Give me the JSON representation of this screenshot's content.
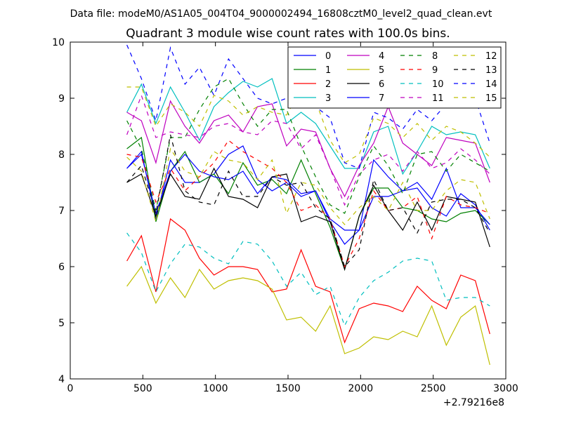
{
  "chart_data": {
    "type": "line",
    "suptitle": "Data file: modeM0/AS1A05_004T04_9000002494_16808cztM0_level2_quad_clean.evt",
    "title": "Quadrant 3 module wise count rates with 100.0s bins.",
    "xlabel": "",
    "ylabel": "",
    "xlim": [
      0,
      3000
    ],
    "ylim": [
      4,
      10
    ],
    "x_offset_label": "+2.79216e8",
    "x_ticks": [
      0,
      500,
      1000,
      1500,
      2000,
      2500,
      3000
    ],
    "x_tick_labels": [
      "0",
      "500",
      "1000",
      "1500",
      "2000",
      "2500",
      "3000"
    ],
    "y_ticks": [
      4,
      5,
      6,
      7,
      8,
      9,
      10
    ],
    "y_tick_labels": [
      "4",
      "5",
      "6",
      "7",
      "8",
      "9",
      "10"
    ],
    "legend_position": "top-right",
    "x": [
      390,
      490,
      590,
      690,
      790,
      890,
      990,
      1090,
      1190,
      1290,
      1390,
      1490,
      1590,
      1690,
      1790,
      1890,
      1990,
      2090,
      2190,
      2290,
      2390,
      2490,
      2590,
      2690,
      2790,
      2890
    ],
    "series": [
      {
        "name": "0",
        "color": "#0000ff",
        "dash": "solid",
        "values": [
          7.75,
          8.05,
          6.85,
          7.9,
          7.5,
          7.5,
          7.65,
          8.0,
          8.15,
          7.55,
          7.35,
          7.5,
          7.25,
          7.35,
          6.8,
          6.4,
          6.65,
          7.9,
          7.6,
          7.35,
          7.4,
          7.05,
          6.9,
          7.3,
          7.1,
          6.65
        ]
      },
      {
        "name": "1",
        "color": "#008000",
        "dash": "solid",
        "values": [
          8.1,
          8.3,
          6.8,
          7.7,
          8.05,
          7.5,
          7.65,
          7.3,
          7.85,
          7.45,
          7.55,
          7.3,
          7.9,
          7.3,
          6.7,
          5.95,
          6.9,
          7.4,
          7.4,
          7.05,
          7.0,
          6.85,
          6.8,
          6.95,
          7.0,
          6.75
        ]
      },
      {
        "name": "2",
        "color": "#ff0000",
        "dash": "solid",
        "values": [
          6.1,
          6.55,
          5.55,
          6.85,
          6.65,
          6.15,
          5.85,
          6.0,
          6.0,
          5.95,
          5.55,
          5.6,
          6.3,
          5.65,
          5.55,
          4.65,
          5.25,
          5.35,
          5.3,
          5.2,
          5.65,
          5.4,
          5.25,
          5.85,
          5.75,
          4.8
        ]
      },
      {
        "name": "3",
        "color": "#00bfbf",
        "dash": "solid",
        "values": [
          8.75,
          9.25,
          8.55,
          9.2,
          8.75,
          8.25,
          8.85,
          9.1,
          9.3,
          9.2,
          9.35,
          8.55,
          8.75,
          8.55,
          8.15,
          7.75,
          7.75,
          8.4,
          8.5,
          7.65,
          8.05,
          8.5,
          8.35,
          8.4,
          8.35,
          7.75
        ]
      },
      {
        "name": "4",
        "color": "#bf00bf",
        "dash": "solid",
        "values": [
          8.75,
          8.6,
          7.85,
          8.95,
          8.5,
          8.2,
          8.6,
          8.7,
          8.4,
          8.85,
          8.9,
          8.15,
          8.45,
          8.4,
          7.75,
          7.25,
          7.8,
          8.2,
          8.85,
          8.2,
          8.0,
          7.8,
          8.3,
          8.25,
          8.2,
          7.5
        ]
      },
      {
        "name": "5",
        "color": "#bfbf00",
        "dash": "solid",
        "values": [
          5.65,
          6.0,
          5.35,
          5.8,
          5.45,
          5.95,
          5.6,
          5.75,
          5.8,
          5.75,
          5.6,
          5.05,
          5.1,
          4.85,
          5.3,
          4.45,
          4.55,
          4.75,
          4.7,
          4.85,
          4.75,
          5.3,
          4.6,
          5.1,
          5.3,
          4.25
        ]
      },
      {
        "name": "6",
        "color": "#000000",
        "dash": "solid",
        "values": [
          7.5,
          7.65,
          6.9,
          7.65,
          7.25,
          7.2,
          7.75,
          7.25,
          7.2,
          7.05,
          7.6,
          7.65,
          6.8,
          6.9,
          6.8,
          5.95,
          6.9,
          7.45,
          7.0,
          6.65,
          7.15,
          6.65,
          7.25,
          7.2,
          7.15,
          6.35
        ]
      },
      {
        "name": "7",
        "color": "#0000ff",
        "dash": "solid",
        "values": [
          7.75,
          8.0,
          6.95,
          7.7,
          8.0,
          7.7,
          7.6,
          7.55,
          7.7,
          7.3,
          7.6,
          7.55,
          7.3,
          7.35,
          6.85,
          6.65,
          6.65,
          7.25,
          7.25,
          7.35,
          7.5,
          7.2,
          7.75,
          7.05,
          7.05,
          6.75
        ]
      },
      {
        "name": "8",
        "color": "#008000",
        "dash": "dashed",
        "values": [
          8.6,
          8.1,
          7.0,
          8.3,
          8.3,
          8.8,
          9.2,
          9.35,
          8.9,
          8.5,
          8.8,
          8.8,
          8.15,
          7.6,
          7.1,
          6.95,
          7.6,
          8.15,
          7.8,
          7.3,
          8.0,
          8.05,
          7.7,
          8.0,
          7.85,
          7.7
        ]
      },
      {
        "name": "9",
        "color": "#ff0000",
        "dash": "dashed",
        "values": [
          8.0,
          7.95,
          7.15,
          7.75,
          7.35,
          7.6,
          7.85,
          8.25,
          8.05,
          7.9,
          7.75,
          7.5,
          7.0,
          7.1,
          6.85,
          6.0,
          6.5,
          7.35,
          7.0,
          7.05,
          7.25,
          6.5,
          7.25,
          7.1,
          7.05,
          6.95
        ]
      },
      {
        "name": "10",
        "color": "#00bfbf",
        "dash": "dashed",
        "values": [
          6.6,
          6.25,
          5.55,
          6.05,
          6.4,
          6.35,
          6.15,
          6.05,
          6.45,
          6.4,
          6.1,
          5.65,
          5.9,
          5.5,
          5.65,
          4.95,
          5.45,
          5.75,
          5.9,
          6.1,
          6.15,
          6.1,
          5.4,
          5.45,
          5.45,
          5.3
        ]
      },
      {
        "name": "11",
        "color": "#bf00bf",
        "dash": "dashed",
        "values": [
          8.35,
          9.05,
          8.3,
          8.4,
          8.35,
          8.3,
          8.5,
          8.55,
          8.4,
          8.35,
          8.6,
          8.55,
          8.1,
          8.35,
          7.75,
          7.1,
          7.65,
          7.9,
          8.0,
          7.7,
          8.05,
          7.75,
          7.85,
          8.1,
          7.9,
          7.65
        ]
      },
      {
        "name": "12",
        "color": "#bfbf00",
        "dash": "dashed",
        "values": [
          7.95,
          7.7,
          6.8,
          8.1,
          7.7,
          7.6,
          8.05,
          7.9,
          7.85,
          7.55,
          7.9,
          6.95,
          7.5,
          7.45,
          7.05,
          6.75,
          7.05,
          7.25,
          7.0,
          7.5,
          7.0,
          7.0,
          7.35,
          7.55,
          7.5,
          6.85
        ]
      },
      {
        "name": "13",
        "color": "#000000",
        "dash": "dashed",
        "values": [
          7.5,
          7.8,
          6.95,
          8.35,
          7.35,
          7.15,
          7.1,
          7.7,
          7.25,
          7.25,
          7.6,
          7.45,
          7.5,
          7.05,
          6.85,
          6.0,
          6.3,
          7.55,
          7.0,
          7.05,
          6.6,
          7.15,
          7.2,
          7.2,
          7.05,
          6.6
        ]
      },
      {
        "name": "14",
        "color": "#0000ff",
        "dash": "dashed",
        "values": [
          9.95,
          9.35,
          8.6,
          9.9,
          9.25,
          9.55,
          9.05,
          9.7,
          9.35,
          9.0,
          8.9,
          9.0,
          8.85,
          8.85,
          8.65,
          7.85,
          7.75,
          8.75,
          8.65,
          8.45,
          8.8,
          8.6,
          8.9,
          8.95,
          9.0,
          8.2
        ]
      },
      {
        "name": "15",
        "color": "#bfbf00",
        "dash": "dashed",
        "values": [
          9.2,
          9.2,
          8.5,
          8.9,
          8.75,
          8.5,
          9.05,
          8.95,
          8.7,
          8.85,
          8.75,
          8.7,
          9.15,
          8.95,
          8.25,
          7.85,
          8.0,
          8.65,
          8.55,
          8.3,
          8.55,
          8.25,
          8.5,
          8.4,
          8.2,
          7.95
        ]
      }
    ]
  }
}
